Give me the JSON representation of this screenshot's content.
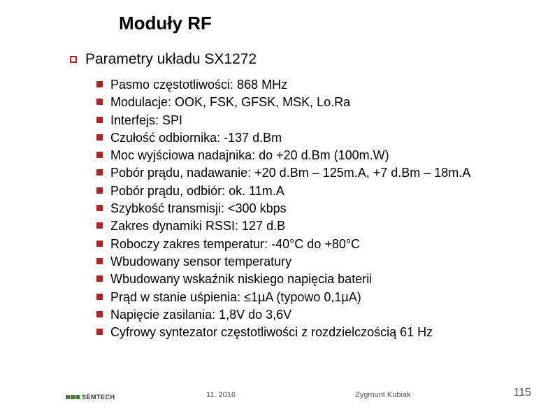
{
  "title": "Moduły RF",
  "level1_text": "Parametry układu SX1272",
  "items": [
    "Pasmo częstotliwości:  868 MHz",
    "Modulacje:  OOK, FSK, GFSK, MSK, Lo.Ra",
    "Interfejs:  SPI",
    "Czułość  odbiornika:  -137 d.Bm",
    "Moc wyjściowa nadajnika:  do +20 d.Bm (100m.W)",
    "Pobór prądu,  nadawanie: +20 d.Bm – 125m.A, +7 d.Bm – 18m.A",
    "Pobór prądu,  odbiór: ok. 11m.A",
    "Szybkość transmisji:  <300 kbps",
    "Zakres dynamiki RSSI:  127 d.B",
    "Roboczy zakres temperatur:  -40°C do +80°C",
    "Wbudowany  sensor temperatury",
    "Wbudowany  wskaźnik niskiego napięcia baterii",
    "Prąd w stanie uśpienia:  ≤1µA (typowo 0,1µA)",
    "Napięcie zasilania:  1,8V do 3,6V",
    "Cyfrowy syntezator częstotliwości z rozdzielczością  61 Hz"
  ],
  "logo_text": "SEMTECH",
  "footer_date": "11. 2016",
  "footer_author": "Zygmunt Kubiak",
  "page_number": "115",
  "colors": {
    "bullet": "#b22222",
    "logo_green": "#4a7a3a",
    "text": "#000000",
    "footer_text": "#555555",
    "background": "#ffffff"
  }
}
